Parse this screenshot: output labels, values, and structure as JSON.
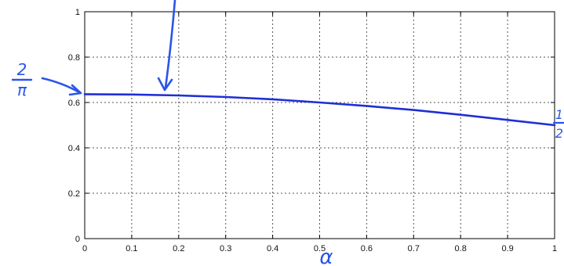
{
  "chart_data": {
    "type": "line",
    "title": "",
    "xlabel": "α",
    "ylabel": "",
    "xlim": [
      0,
      1
    ],
    "ylim": [
      0,
      1
    ],
    "grid": true,
    "x_ticks": [
      0,
      0.1,
      0.2,
      0.3,
      0.4,
      0.5,
      0.6,
      0.7,
      0.8,
      0.9,
      1
    ],
    "x_tick_labels": [
      "0",
      "0.1",
      "0.2",
      "0.3",
      "0.4",
      "0.5",
      "0.6",
      "0.7",
      "0.8",
      "0.9",
      "1"
    ],
    "y_ticks": [
      0,
      0.2,
      0.4,
      0.6,
      0.8,
      1
    ],
    "y_tick_labels": [
      "0",
      "0.2",
      "0.4",
      "0.6",
      "0.8",
      "1"
    ],
    "series": [
      {
        "color": "#1f2fd6",
        "x": [
          0,
          0.1,
          0.2,
          0.3,
          0.4,
          0.5,
          0.6,
          0.7,
          0.8,
          0.9,
          1
        ],
        "y": [
          0.6366,
          0.6352,
          0.631,
          0.624,
          0.614,
          0.6,
          0.585,
          0.567,
          0.546,
          0.523,
          0.5
        ]
      }
    ],
    "annotations": {
      "left_fraction": {
        "numerator": "2",
        "denominator": "π"
      },
      "right_fraction": {
        "numerator": "1",
        "denominator": "2"
      }
    },
    "colors": {
      "annotation": "#2a55e8",
      "curve": "#1f2fd6",
      "grid": "#555555",
      "axes": "#000000"
    }
  }
}
